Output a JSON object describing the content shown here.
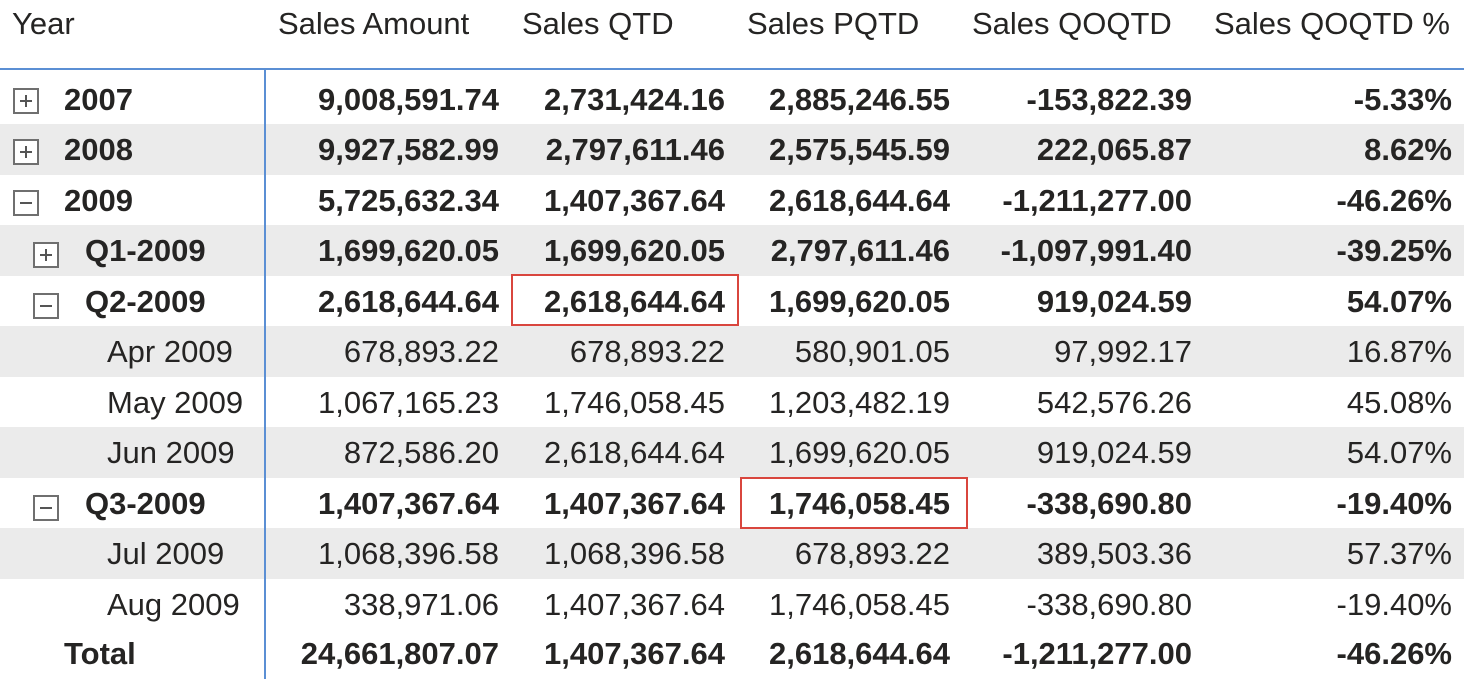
{
  "columns": [
    "Year",
    "Sales Amount",
    "Sales QTD",
    "Sales PQTD",
    "Sales QOQTD",
    "Sales QOQTD %"
  ],
  "rows": [
    {
      "label": "2007",
      "values": [
        "9,008,591.74",
        "2,731,424.16",
        "2,885,246.55",
        "-153,822.39",
        "-5.33%"
      ],
      "expander": "plus"
    },
    {
      "label": "2008",
      "values": [
        "9,927,582.99",
        "2,797,611.46",
        "2,575,545.59",
        "222,065.87",
        "8.62%"
      ],
      "expander": "plus"
    },
    {
      "label": "2009",
      "values": [
        "5,725,632.34",
        "1,407,367.64",
        "2,618,644.64",
        "-1,211,277.00",
        "-46.26%"
      ],
      "expander": "minus"
    },
    {
      "label": "Q1-2009",
      "values": [
        "1,699,620.05",
        "1,699,620.05",
        "2,797,611.46",
        "-1,097,991.40",
        "-39.25%"
      ],
      "expander": "plus"
    },
    {
      "label": "Q2-2009",
      "values": [
        "2,618,644.64",
        "2,618,644.64",
        "1,699,620.05",
        "919,024.59",
        "54.07%"
      ],
      "expander": "minus"
    },
    {
      "label": "Apr 2009",
      "values": [
        "678,893.22",
        "678,893.22",
        "580,901.05",
        "97,992.17",
        "16.87%"
      ]
    },
    {
      "label": "May 2009",
      "values": [
        "1,067,165.23",
        "1,746,058.45",
        "1,203,482.19",
        "542,576.26",
        "45.08%"
      ]
    },
    {
      "label": "Jun 2009",
      "values": [
        "872,586.20",
        "2,618,644.64",
        "1,699,620.05",
        "919,024.59",
        "54.07%"
      ]
    },
    {
      "label": "Q3-2009",
      "values": [
        "1,407,367.64",
        "1,407,367.64",
        "1,746,058.45",
        "-338,690.80",
        "-19.40%"
      ],
      "expander": "minus"
    },
    {
      "label": "Jul 2009",
      "values": [
        "1,068,396.58",
        "1,068,396.58",
        "678,893.22",
        "389,503.36",
        "57.37%"
      ]
    },
    {
      "label": "Aug 2009",
      "values": [
        "338,971.06",
        "1,407,367.64",
        "1,746,058.45",
        "-338,690.80",
        "-19.40%"
      ]
    },
    {
      "label": "Total",
      "values": [
        "24,661,807.07",
        "1,407,367.64",
        "2,618,644.64",
        "-1,211,277.00",
        "-46.26%"
      ]
    }
  ],
  "colors": {
    "header_rule": "#5b8fd4",
    "row_shade": "#ebebeb",
    "highlight": "#d9463e"
  },
  "icons": {
    "plus": "expand-plus-icon",
    "minus": "collapse-minus-icon"
  }
}
